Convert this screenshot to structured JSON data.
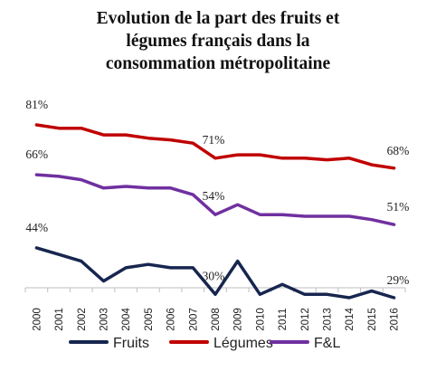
{
  "chart_data": {
    "type": "line",
    "title_lines": [
      "Evolution de la part des fruits et",
      "légumes français dans la",
      "consommation métropolitaine"
    ],
    "categories": [
      "2000",
      "2001",
      "2002",
      "2003",
      "2004",
      "2005",
      "2006",
      "2007",
      "2008",
      "2009",
      "2010",
      "2011",
      "2012",
      "2013",
      "2014",
      "2015",
      "2016"
    ],
    "series": [
      {
        "name": "Fruits",
        "color": "#17264f",
        "values": [
          44,
          42,
          40,
          34,
          38,
          39,
          38,
          38,
          30,
          40,
          30,
          33,
          30,
          30,
          29,
          31,
          29
        ]
      },
      {
        "name": "Légumes",
        "color": "#c00000",
        "values": [
          81,
          80,
          80,
          78,
          78,
          77,
          76.5,
          75.5,
          71,
          72,
          72,
          71,
          71,
          70.5,
          71,
          69,
          68
        ]
      },
      {
        "name": "F&L",
        "color": "#7030a0",
        "values": [
          66,
          65.5,
          64.5,
          62,
          62.5,
          62,
          62,
          60,
          54,
          57,
          54,
          54,
          53.5,
          53.5,
          53.5,
          52.5,
          51
        ]
      }
    ],
    "data_labels": [
      {
        "series": "Fruits",
        "category": "2000",
        "text": "44%"
      },
      {
        "series": "Fruits",
        "category": "2008",
        "text": "30%"
      },
      {
        "series": "Fruits",
        "category": "2016",
        "text": "29%"
      },
      {
        "series": "Légumes",
        "category": "2000",
        "text": "81%"
      },
      {
        "series": "Légumes",
        "category": "2008",
        "text": "71%"
      },
      {
        "series": "Légumes",
        "category": "2016",
        "text": "68%"
      },
      {
        "series": "F&L",
        "category": "2000",
        "text": "66%"
      },
      {
        "series": "F&L",
        "category": "2008",
        "text": "54%"
      },
      {
        "series": "F&L",
        "category": "2016",
        "text": "51%"
      }
    ],
    "ylim": [
      20,
      90
    ],
    "grid": false,
    "legend_position": "bottom"
  }
}
